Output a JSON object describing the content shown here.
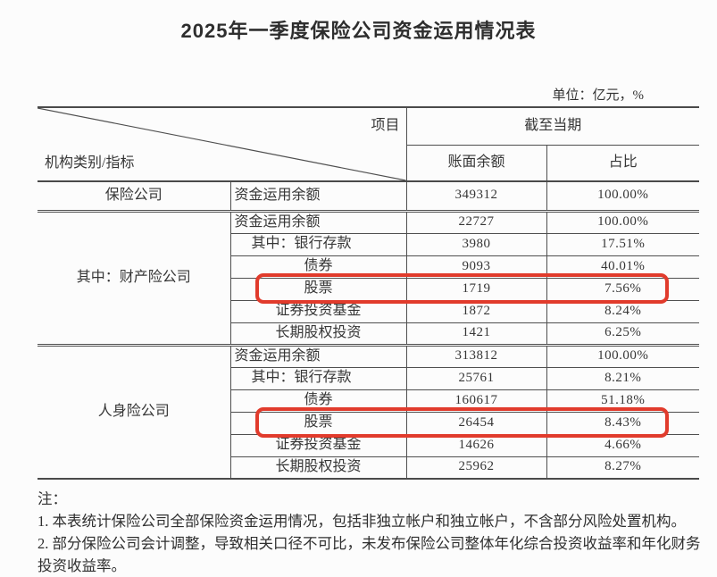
{
  "title": "2025年一季度保险公司资金运用情况表",
  "unit_note": "单位：亿元，%",
  "table": {
    "corner_top": "项目",
    "corner_bottom": "机构类别/指标",
    "group_header": "截至当期",
    "col_balance": "账面余额",
    "col_share": "占比",
    "sections": [
      {
        "org": "保险公司",
        "rows": [
          {
            "indicator": "资金运用余额",
            "balance": "349312",
            "share": "100.00%"
          }
        ]
      },
      {
        "org": "其中：财产险公司",
        "rows": [
          {
            "indicator": "资金运用余额",
            "balance": "22727",
            "share": "100.00%"
          },
          {
            "indicator": "其中：银行存款",
            "balance": "3980",
            "share": "17.51%"
          },
          {
            "indicator": "债券",
            "balance": "9093",
            "share": "40.01%"
          },
          {
            "indicator": "股票",
            "balance": "1719",
            "share": "7.56%",
            "highlighted": true
          },
          {
            "indicator": "证券投资基金",
            "balance": "1872",
            "share": "8.24%"
          },
          {
            "indicator": "长期股权投资",
            "balance": "1421",
            "share": "6.25%"
          }
        ]
      },
      {
        "org": "人身险公司",
        "rows": [
          {
            "indicator": "资金运用余额",
            "balance": "313812",
            "share": "100.00%"
          },
          {
            "indicator": "其中：银行存款",
            "balance": "25761",
            "share": "8.21%"
          },
          {
            "indicator": "债券",
            "balance": "160617",
            "share": "51.18%"
          },
          {
            "indicator": "股票",
            "balance": "26454",
            "share": "8.43%",
            "highlighted": true
          },
          {
            "indicator": "证券投资基金",
            "balance": "14626",
            "share": "4.66%"
          },
          {
            "indicator": "长期股权投资",
            "balance": "25962",
            "share": "8.27%"
          }
        ]
      }
    ]
  },
  "notes": {
    "label": "注：",
    "items": [
      "1. 本表统计保险公司全部保险资金运用情况，包括非独立帐户和独立帐户，不含部分风险处置机构。",
      "2. 部分保险公司会计调整，导致相关口径不可比，未发布保险公司整体年化综合投资收益率和年化财务投资收益率。"
    ]
  },
  "highlight_color": "#e13b2c"
}
